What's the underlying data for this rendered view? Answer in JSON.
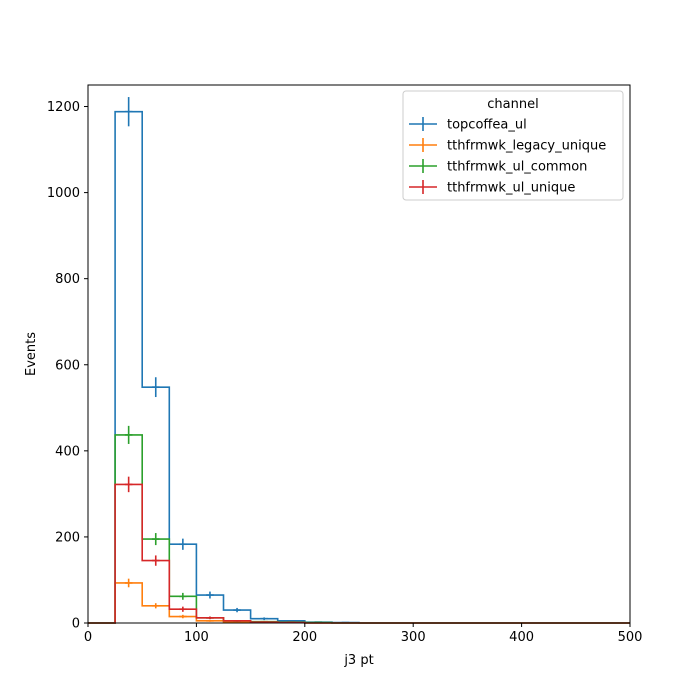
{
  "chart_data": {
    "type": "histogram",
    "xlabel": "j3 pt",
    "ylabel": "Events",
    "xlim": [
      0,
      500
    ],
    "ylim": [
      0,
      1250
    ],
    "xticks": [
      0,
      100,
      200,
      300,
      400,
      500
    ],
    "yticks": [
      0,
      200,
      400,
      600,
      800,
      1000,
      1200
    ],
    "bin_edges": [
      0,
      25,
      50,
      75,
      100,
      125,
      150,
      175,
      200,
      225,
      250,
      275,
      300,
      325,
      350,
      375,
      400,
      425,
      450,
      475,
      500
    ],
    "legend": {
      "title": "channel",
      "position": "top-right"
    },
    "grid": false,
    "series": [
      {
        "name": "topcoffea_ul",
        "color": "#1f77b4",
        "values": [
          0,
          1188,
          548,
          183,
          65,
          30,
          10,
          5,
          2,
          1,
          0,
          0,
          0,
          0,
          0,
          0,
          0,
          0,
          0,
          0
        ],
        "errors": [
          0,
          34,
          23,
          13,
          8,
          5,
          3,
          2,
          1,
          1,
          0,
          0,
          0,
          0,
          0,
          0,
          0,
          0,
          0,
          0
        ]
      },
      {
        "name": "tthfrmwk_legacy_unique",
        "color": "#ff7f0e",
        "values": [
          0,
          93,
          40,
          15,
          5,
          2,
          1,
          1,
          0,
          0,
          0,
          0,
          0,
          0,
          0,
          0,
          0,
          0,
          0,
          0
        ],
        "errors": [
          0,
          10,
          6,
          4,
          2,
          1,
          1,
          1,
          0,
          0,
          0,
          0,
          0,
          0,
          0,
          0,
          0,
          0,
          0,
          0
        ]
      },
      {
        "name": "tthfrmwk_ul_common",
        "color": "#2ca02c",
        "values": [
          0,
          437,
          195,
          62,
          12,
          5,
          3,
          2,
          1,
          0,
          0,
          0,
          0,
          0,
          0,
          0,
          0,
          0,
          0,
          0
        ],
        "errors": [
          0,
          21,
          14,
          8,
          3,
          2,
          2,
          1,
          1,
          0,
          0,
          0,
          0,
          0,
          0,
          0,
          0,
          0,
          0,
          0
        ]
      },
      {
        "name": "tthfrmwk_ul_unique",
        "color": "#d62728",
        "values": [
          0,
          322,
          145,
          32,
          12,
          5,
          2,
          1,
          0,
          0,
          0,
          0,
          0,
          0,
          0,
          0,
          0,
          0,
          0,
          0
        ],
        "errors": [
          0,
          18,
          12,
          6,
          3,
          2,
          1,
          1,
          0,
          0,
          0,
          0,
          0,
          0,
          0,
          0,
          0,
          0,
          0,
          0
        ]
      }
    ]
  }
}
